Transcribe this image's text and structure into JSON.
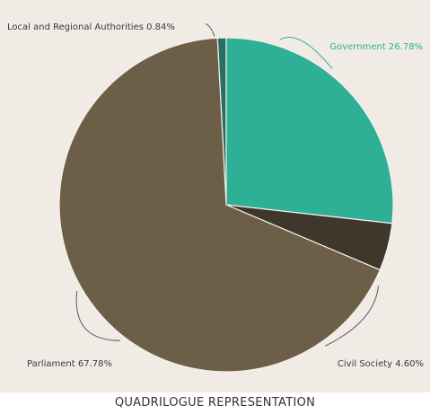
{
  "chart_data": {
    "type": "pie",
    "caption": "QUADRILOGUE REPRESENTATION",
    "slices": [
      {
        "label": "Local and Regional Authorities",
        "value": 0.84,
        "display": "Local and Regional Authorities 0.84%",
        "color": "#2a6e64"
      },
      {
        "label": "Government",
        "value": 26.78,
        "display": "Government 26.78%",
        "color": "#2eb096"
      },
      {
        "label": "Civil Society",
        "value": 4.6,
        "display": "Civil Society 4.60%",
        "color": "#3f372c"
      },
      {
        "label": "Parliament",
        "value": 67.78,
        "display": "Parliament 67.78%",
        "color": "#6d5e48"
      }
    ]
  },
  "colors": {
    "background": "#f0ece5",
    "label_dark": "#3a3a3a",
    "label_government": "#2eb096"
  }
}
